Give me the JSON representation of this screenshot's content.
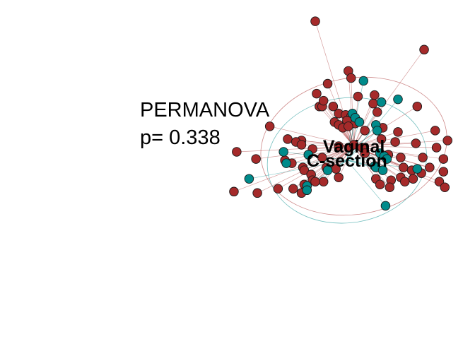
{
  "chart_data": {
    "type": "scatter",
    "subtype": "ordination-spider-plot",
    "title": "",
    "xlabel": "",
    "ylabel": "",
    "annotation": {
      "line1": "PERMANOVA",
      "line2": "p= 0.338"
    },
    "colors": {
      "Vaginal": "#A52A2A",
      "C-section": "#008B8B"
    },
    "xlim": [
      -1.2,
      1.2
    ],
    "ylim": [
      -1.0,
      1.0
    ],
    "groups": [
      {
        "name": "Vaginal",
        "label": "Vaginal",
        "color": "#A52A2A",
        "centroid": [
          0.28,
          0.02
        ],
        "ellipse": {
          "rx": 0.68,
          "ry": 0.48,
          "angle": -10
        },
        "points": [
          [
            0.0,
            0.9
          ],
          [
            0.79,
            0.7
          ],
          [
            0.24,
            0.55
          ],
          [
            0.26,
            0.5
          ],
          [
            0.09,
            0.46
          ],
          [
            0.31,
            0.37
          ],
          [
            0.43,
            0.38
          ],
          [
            0.01,
            0.39
          ],
          [
            0.74,
            0.3
          ],
          [
            0.42,
            0.32
          ],
          [
            0.45,
            0.26
          ],
          [
            0.03,
            0.3
          ],
          [
            0.05,
            0.3
          ],
          [
            0.06,
            0.34
          ],
          [
            0.13,
            0.3
          ],
          [
            0.17,
            0.25
          ],
          [
            0.22,
            0.24
          ],
          [
            0.26,
            0.23
          ],
          [
            0.23,
            0.2
          ],
          [
            0.29,
            0.18
          ],
          [
            0.14,
            0.19
          ],
          [
            0.17,
            0.17
          ],
          [
            0.2,
            0.15
          ],
          [
            0.24,
            0.16
          ],
          [
            -0.33,
            0.16
          ],
          [
            0.36,
            0.13
          ],
          [
            0.49,
            0.15
          ],
          [
            0.6,
            0.12
          ],
          [
            0.87,
            0.13
          ],
          [
            0.96,
            0.06
          ],
          [
            0.48,
            0.07
          ],
          [
            0.58,
            0.05
          ],
          [
            0.73,
            0.04
          ],
          [
            0.88,
            0.01
          ],
          [
            -0.1,
            0.06
          ],
          [
            -0.2,
            0.07
          ],
          [
            -0.14,
            0.05
          ],
          [
            -0.1,
            0.03
          ],
          [
            -0.02,
            0.0
          ],
          [
            0.17,
            0.02
          ],
          [
            0.25,
            0.01
          ],
          [
            0.28,
            0.03
          ],
          [
            0.34,
            0.01
          ],
          [
            0.36,
            -0.03
          ],
          [
            0.53,
            -0.04
          ],
          [
            0.62,
            -0.06
          ],
          [
            0.78,
            -0.06
          ],
          [
            0.93,
            -0.07
          ],
          [
            0.05,
            -0.06
          ],
          [
            -0.57,
            -0.02
          ],
          [
            -0.43,
            -0.07
          ],
          [
            -0.22,
            -0.08
          ],
          [
            -0.17,
            -0.1
          ],
          [
            -0.09,
            -0.13
          ],
          [
            -0.08,
            -0.15
          ],
          [
            -0.03,
            -0.18
          ],
          [
            0.08,
            -0.13
          ],
          [
            0.15,
            -0.14
          ],
          [
            0.64,
            -0.13
          ],
          [
            0.7,
            -0.15
          ],
          [
            0.77,
            -0.17
          ],
          [
            0.83,
            -0.13
          ],
          [
            0.93,
            -0.16
          ],
          [
            -0.02,
            -0.22
          ],
          [
            0.06,
            -0.23
          ],
          [
            0.17,
            -0.2
          ],
          [
            0.44,
            -0.21
          ],
          [
            0.55,
            -0.22
          ],
          [
            0.62,
            -0.2
          ],
          [
            0.71,
            -0.21
          ],
          [
            0.9,
            -0.23
          ],
          [
            -0.27,
            -0.28
          ],
          [
            -0.16,
            -0.28
          ],
          [
            -0.08,
            -0.25
          ],
          [
            0.0,
            -0.23
          ],
          [
            0.47,
            -0.25
          ],
          [
            0.54,
            -0.27
          ],
          [
            0.65,
            -0.23
          ],
          [
            0.94,
            -0.27
          ],
          [
            -0.59,
            -0.3
          ],
          [
            -0.42,
            -0.31
          ],
          [
            -0.1,
            -0.31
          ]
        ]
      },
      {
        "name": "C-section",
        "label": "C-section",
        "color": "#008B8B",
        "centroid": [
          0.23,
          -0.08
        ],
        "ellipse": {
          "rx": 0.58,
          "ry": 0.44,
          "angle": -8
        },
        "points": [
          [
            0.35,
            0.48
          ],
          [
            0.27,
            0.25
          ],
          [
            0.48,
            0.33
          ],
          [
            0.6,
            0.35
          ],
          [
            0.29,
            0.22
          ],
          [
            0.32,
            0.19
          ],
          [
            0.44,
            0.17
          ],
          [
            0.45,
            0.13
          ],
          [
            -0.23,
            -0.02
          ],
          [
            -0.05,
            -0.04
          ],
          [
            -0.21,
            -0.1
          ],
          [
            0.47,
            -0.03
          ],
          [
            0.5,
            -0.05
          ],
          [
            0.52,
            -0.07
          ],
          [
            0.43,
            -0.12
          ],
          [
            0.44,
            -0.13
          ],
          [
            0.49,
            -0.15
          ],
          [
            0.74,
            -0.14
          ],
          [
            -0.48,
            -0.21
          ],
          [
            0.09,
            -0.15
          ],
          [
            -0.06,
            -0.26
          ],
          [
            -0.06,
            -0.29
          ],
          [
            0.51,
            -0.4
          ]
        ]
      }
    ]
  }
}
